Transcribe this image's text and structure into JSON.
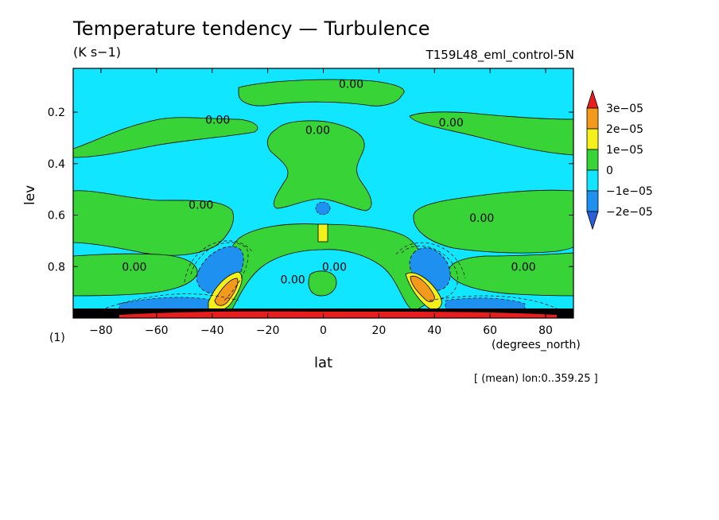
{
  "figure": {
    "title": "Temperature tendency — Turbulence",
    "units": "(K s−1)",
    "run_label": "T159L48_eml_control-5N",
    "x_units": "(degrees_north)",
    "y_note": "(1)",
    "averaging_note": "[ (mean) lon:0..359.25 ]"
  },
  "chart_data": {
    "type": "heatmap",
    "title": "Temperature tendency — Turbulence",
    "xlabel": "lat",
    "ylabel": "lev",
    "xlim": [
      -90,
      90
    ],
    "ylim": [
      1.0,
      0.03
    ],
    "x_ticks": [
      "−80",
      "−60",
      "−40",
      "−20",
      "0",
      "20",
      "40",
      "60",
      "80"
    ],
    "x_tick_values": [
      -80,
      -60,
      -40,
      -20,
      0,
      20,
      40,
      60,
      80
    ],
    "y_ticks": [
      "0.2",
      "0.4",
      "0.6",
      "0.8"
    ],
    "y_tick_values": [
      0.2,
      0.4,
      0.6,
      0.8
    ],
    "colorbar": {
      "labels": [
        "3e−05",
        "2e−05",
        "1e−05",
        "0",
        "−1e−05",
        "−2e−05"
      ],
      "colors": [
        "#e81e1e",
        "#f39a1c",
        "#f3f01c",
        "#37d337",
        "#10e6ff",
        "#1e90f0",
        "#2a5fd8"
      ]
    },
    "contour_labels": [
      {
        "text": "0.00",
        "lat": 10,
        "lev": 0.09
      },
      {
        "text": "0.00",
        "lat": -38,
        "lev": 0.23
      },
      {
        "text": "0.00",
        "lat": -2,
        "lev": 0.27
      },
      {
        "text": "0.00",
        "lat": 46,
        "lev": 0.24
      },
      {
        "text": "0.00",
        "lat": -44,
        "lev": 0.56
      },
      {
        "text": "0.00",
        "lat": -68,
        "lev": 0.8
      },
      {
        "text": "0.00",
        "lat": 72,
        "lev": 0.8
      },
      {
        "text": "0.00",
        "lat": 57,
        "lev": 0.61
      },
      {
        "text": "0.00",
        "lat": 4,
        "lev": 0.8
      },
      {
        "text": "0.00",
        "lat": -11,
        "lev": 0.85
      }
    ]
  }
}
